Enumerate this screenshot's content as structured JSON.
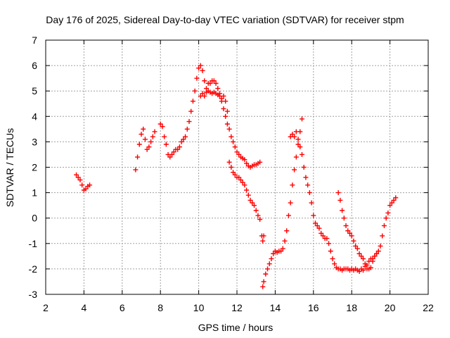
{
  "chart_data": {
    "type": "scatter",
    "title": "Day 176 of 2025, Sidereal Day-to-day VTEC variation (SDTVAR) for receiver stpm",
    "xlabel": "GPS time / hours",
    "ylabel": "SDTVAR / TECUs",
    "xlim": [
      2,
      22
    ],
    "ylim": [
      -3,
      7
    ],
    "x_ticks": [
      2,
      4,
      6,
      8,
      10,
      12,
      14,
      16,
      18,
      20,
      22
    ],
    "y_ticks": [
      -3,
      -2,
      -1,
      0,
      1,
      2,
      3,
      4,
      5,
      6,
      7
    ],
    "grid": true,
    "marker": "+",
    "colors": {
      "series": "#ff0000",
      "grid": "#a0a0a0",
      "axis": "#000000"
    },
    "series": [
      {
        "x": [
          3.6,
          3.7,
          3.8,
          3.9,
          4.0,
          4.1,
          4.2,
          4.3,
          6.7,
          6.8,
          6.9,
          7.0,
          7.1,
          7.2,
          7.3,
          7.4,
          7.5,
          7.6,
          7.7,
          8.0,
          8.1,
          8.2,
          8.3,
          8.4,
          8.5,
          8.6,
          8.7,
          8.8,
          8.9,
          9.0,
          9.1,
          9.2,
          9.3,
          9.4,
          9.5,
          9.6,
          9.7,
          9.8,
          9.9,
          10.0,
          10.1,
          10.2,
          10.3,
          10.4,
          10.5,
          10.6,
          10.7,
          10.8,
          10.9,
          11.0,
          11.1,
          11.2,
          11.3,
          11.4,
          11.5,
          11.6,
          11.7,
          11.8,
          11.9,
          12.0,
          12.1,
          12.2,
          12.3,
          12.4,
          12.5,
          12.6,
          12.7,
          12.8,
          12.9,
          13.0,
          13.1,
          13.2,
          10.1,
          10.2,
          10.3,
          10.4,
          10.5,
          10.6,
          10.7,
          10.8,
          10.9,
          11.0,
          11.1,
          11.2,
          11.3,
          11.4,
          11.5,
          11.6,
          11.7,
          11.8,
          11.9,
          12.0,
          12.1,
          12.2,
          12.3,
          12.4,
          12.5,
          12.6,
          12.7,
          12.8,
          12.9,
          13.0,
          13.1,
          13.2,
          13.3,
          13.35,
          13.4,
          13.35,
          13.4,
          13.5,
          13.6,
          13.7,
          13.8,
          13.9,
          14.0,
          14.1,
          14.2,
          14.3,
          14.4,
          14.5,
          14.6,
          14.7,
          14.8,
          14.9,
          15.0,
          15.1,
          15.2,
          15.3,
          15.4,
          14.8,
          14.9,
          15.0,
          15.1,
          15.2,
          15.3,
          15.4,
          15.5,
          15.6,
          15.7,
          15.8,
          15.9,
          16.0,
          16.1,
          16.2,
          16.3,
          16.4,
          16.5,
          16.6,
          16.7,
          16.8,
          16.9,
          17.0,
          17.1,
          17.2,
          17.3,
          17.4,
          17.5,
          17.6,
          17.7,
          17.8,
          17.9,
          18.0,
          18.1,
          18.2,
          18.3,
          18.4,
          18.5,
          18.6,
          18.7,
          18.8,
          18.9,
          19.0,
          19.1,
          19.2,
          19.3,
          17.3,
          17.4,
          17.5,
          17.6,
          17.7,
          17.8,
          17.9,
          18.0,
          18.1,
          18.2,
          18.3,
          18.4,
          18.5,
          18.6,
          18.7,
          18.8,
          18.9,
          19.0,
          19.1,
          19.2,
          19.3,
          19.4,
          19.5,
          19.6,
          19.7,
          19.8,
          19.9,
          20.0,
          20.1,
          20.2,
          20.3
        ],
        "y": [
          1.7,
          1.6,
          1.5,
          1.3,
          1.1,
          1.15,
          1.25,
          1.3,
          1.9,
          2.4,
          2.9,
          3.3,
          3.5,
          3.1,
          2.7,
          2.8,
          3.0,
          3.2,
          3.4,
          3.7,
          3.6,
          3.2,
          2.9,
          2.5,
          2.4,
          2.5,
          2.6,
          2.7,
          2.7,
          2.8,
          3.0,
          3.1,
          3.2,
          3.5,
          3.8,
          4.2,
          4.6,
          5.0,
          5.5,
          5.9,
          6.0,
          5.8,
          5.4,
          5.1,
          5.3,
          5.3,
          5.4,
          5.4,
          5.3,
          5.1,
          4.9,
          4.6,
          4.3,
          4.0,
          3.7,
          3.5,
          3.2,
          3.0,
          2.8,
          2.6,
          2.5,
          2.4,
          2.35,
          2.3,
          2.15,
          2.05,
          2.0,
          2.05,
          2.1,
          2.1,
          2.15,
          2.2,
          4.8,
          4.9,
          4.8,
          4.95,
          5.0,
          4.95,
          4.9,
          4.95,
          4.9,
          4.85,
          4.8,
          4.7,
          4.8,
          4.6,
          4.2,
          2.2,
          2.0,
          1.8,
          1.7,
          1.6,
          1.6,
          1.5,
          1.4,
          1.3,
          1.1,
          0.9,
          0.7,
          0.6,
          0.5,
          0.3,
          0.1,
          -0.05,
          -0.7,
          -0.9,
          -0.7,
          -2.7,
          -2.5,
          -2.2,
          -2.0,
          -1.8,
          -1.6,
          -1.4,
          -1.3,
          -1.35,
          -1.3,
          -1.3,
          -1.2,
          -0.9,
          -0.5,
          0.1,
          0.6,
          1.3,
          1.9,
          2.4,
          2.9,
          3.4,
          3.9,
          3.2,
          3.3,
          3.2,
          3.4,
          3.1,
          2.8,
          2.5,
          2.0,
          1.6,
          1.3,
          1.0,
          0.6,
          0.1,
          -0.2,
          -0.3,
          -0.4,
          -0.6,
          -0.7,
          -0.8,
          -0.8,
          -1.0,
          -1.3,
          -1.6,
          -1.8,
          -1.95,
          -2.0,
          -2.0,
          -2.05,
          -2.0,
          -2.0,
          -2.0,
          -2.05,
          -2.0,
          -2.05,
          -2.0,
          -2.05,
          -2.1,
          -2.0,
          -2.05,
          -1.9,
          -1.85,
          -1.7,
          -1.6,
          -1.6,
          -1.5,
          -1.4,
          1.0,
          0.7,
          0.3,
          0.0,
          -0.3,
          -0.5,
          -0.6,
          -0.7,
          -0.9,
          -1.1,
          -1.2,
          -1.4,
          -1.5,
          -1.6,
          -1.8,
          -2.0,
          -2.0,
          -1.95,
          -1.7,
          -1.5,
          -1.4,
          -1.3,
          -1.1,
          -0.7,
          -0.3,
          0.0,
          0.2,
          0.5,
          0.6,
          0.7,
          0.8
        ]
      }
    ]
  }
}
